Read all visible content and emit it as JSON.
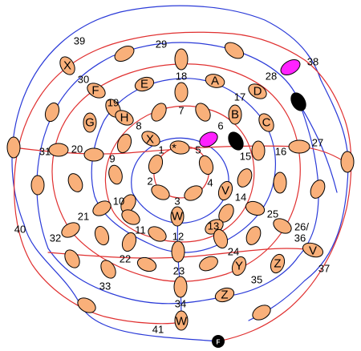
{
  "legend_colors": {
    "crossing": "#f9b07a",
    "highlight": "#ff22ff",
    "blocked": "#000000",
    "red_curve": "#e03030",
    "blue_curve": "#2a3ad8"
  },
  "region_labels": [
    "1",
    "2",
    "3",
    "4",
    "5",
    "6",
    "7",
    "8",
    "9",
    "10",
    "11",
    "12",
    "13",
    "14",
    "15",
    "16",
    "17",
    "18",
    "19",
    "20",
    "21",
    "22",
    "23",
    "24",
    "25",
    "26/",
    "36",
    "27",
    "28",
    "29",
    "30",
    "31",
    "32",
    "33",
    "34",
    "35",
    "37",
    "38",
    "39",
    "40",
    "41"
  ],
  "node_labels": [
    "*",
    "X",
    "F",
    "E",
    "A",
    "D",
    "G",
    "H",
    "B",
    "C",
    "V",
    "W",
    "Y",
    "Z",
    "V",
    "Z",
    "W"
  ],
  "finish_label": "F"
}
